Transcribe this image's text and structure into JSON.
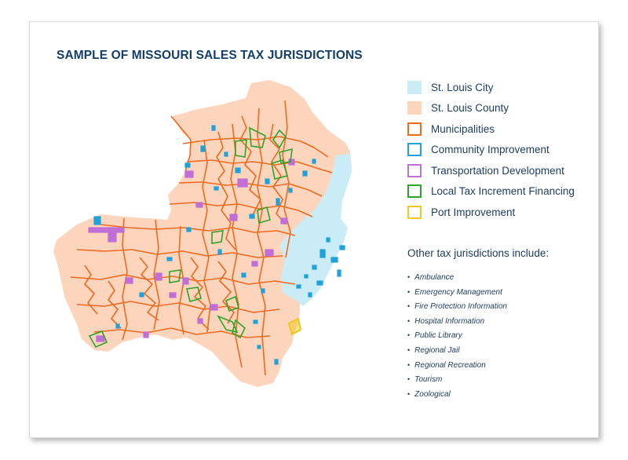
{
  "title": "SAMPLE OF MISSOURI SALES TAX JURISDICTIONS",
  "legend": [
    {
      "label": "St. Louis City",
      "color": "#c9ecf7",
      "style": "fill"
    },
    {
      "label": "St. Louis County",
      "color": "#fcd5bc",
      "style": "fill"
    },
    {
      "label": "Municipalities",
      "color": "#ef6a1e",
      "style": "outline"
    },
    {
      "label": "Community Improvement",
      "color": "#1fa2da",
      "style": "outline"
    },
    {
      "label": "Transportation Development",
      "color": "#c06fd6",
      "style": "outline"
    },
    {
      "label": "Local Tax Increment Financing",
      "color": "#2aa52a",
      "style": "outline"
    },
    {
      "label": "Port Improvement",
      "color": "#f2c81a",
      "style": "outline"
    }
  ],
  "others_title": "Other tax jurisdictions include:",
  "others": [
    "Ambulance",
    "Emergency Management",
    "Fire Protection Information",
    "Hospital Information",
    "Public Library",
    "Regional Jail",
    "Regional Recreation",
    "Tourism",
    "Zoological"
  ],
  "colors": {
    "title": "#123f6b",
    "text": "#1b3b5e",
    "county": "#fcd5bc",
    "city": "#c9ecf7",
    "municipal": "#ef6a1e",
    "community": "#1fa2da",
    "transport": "#c06fd6",
    "tif": "#2aa52a",
    "port": "#f2c81a"
  }
}
